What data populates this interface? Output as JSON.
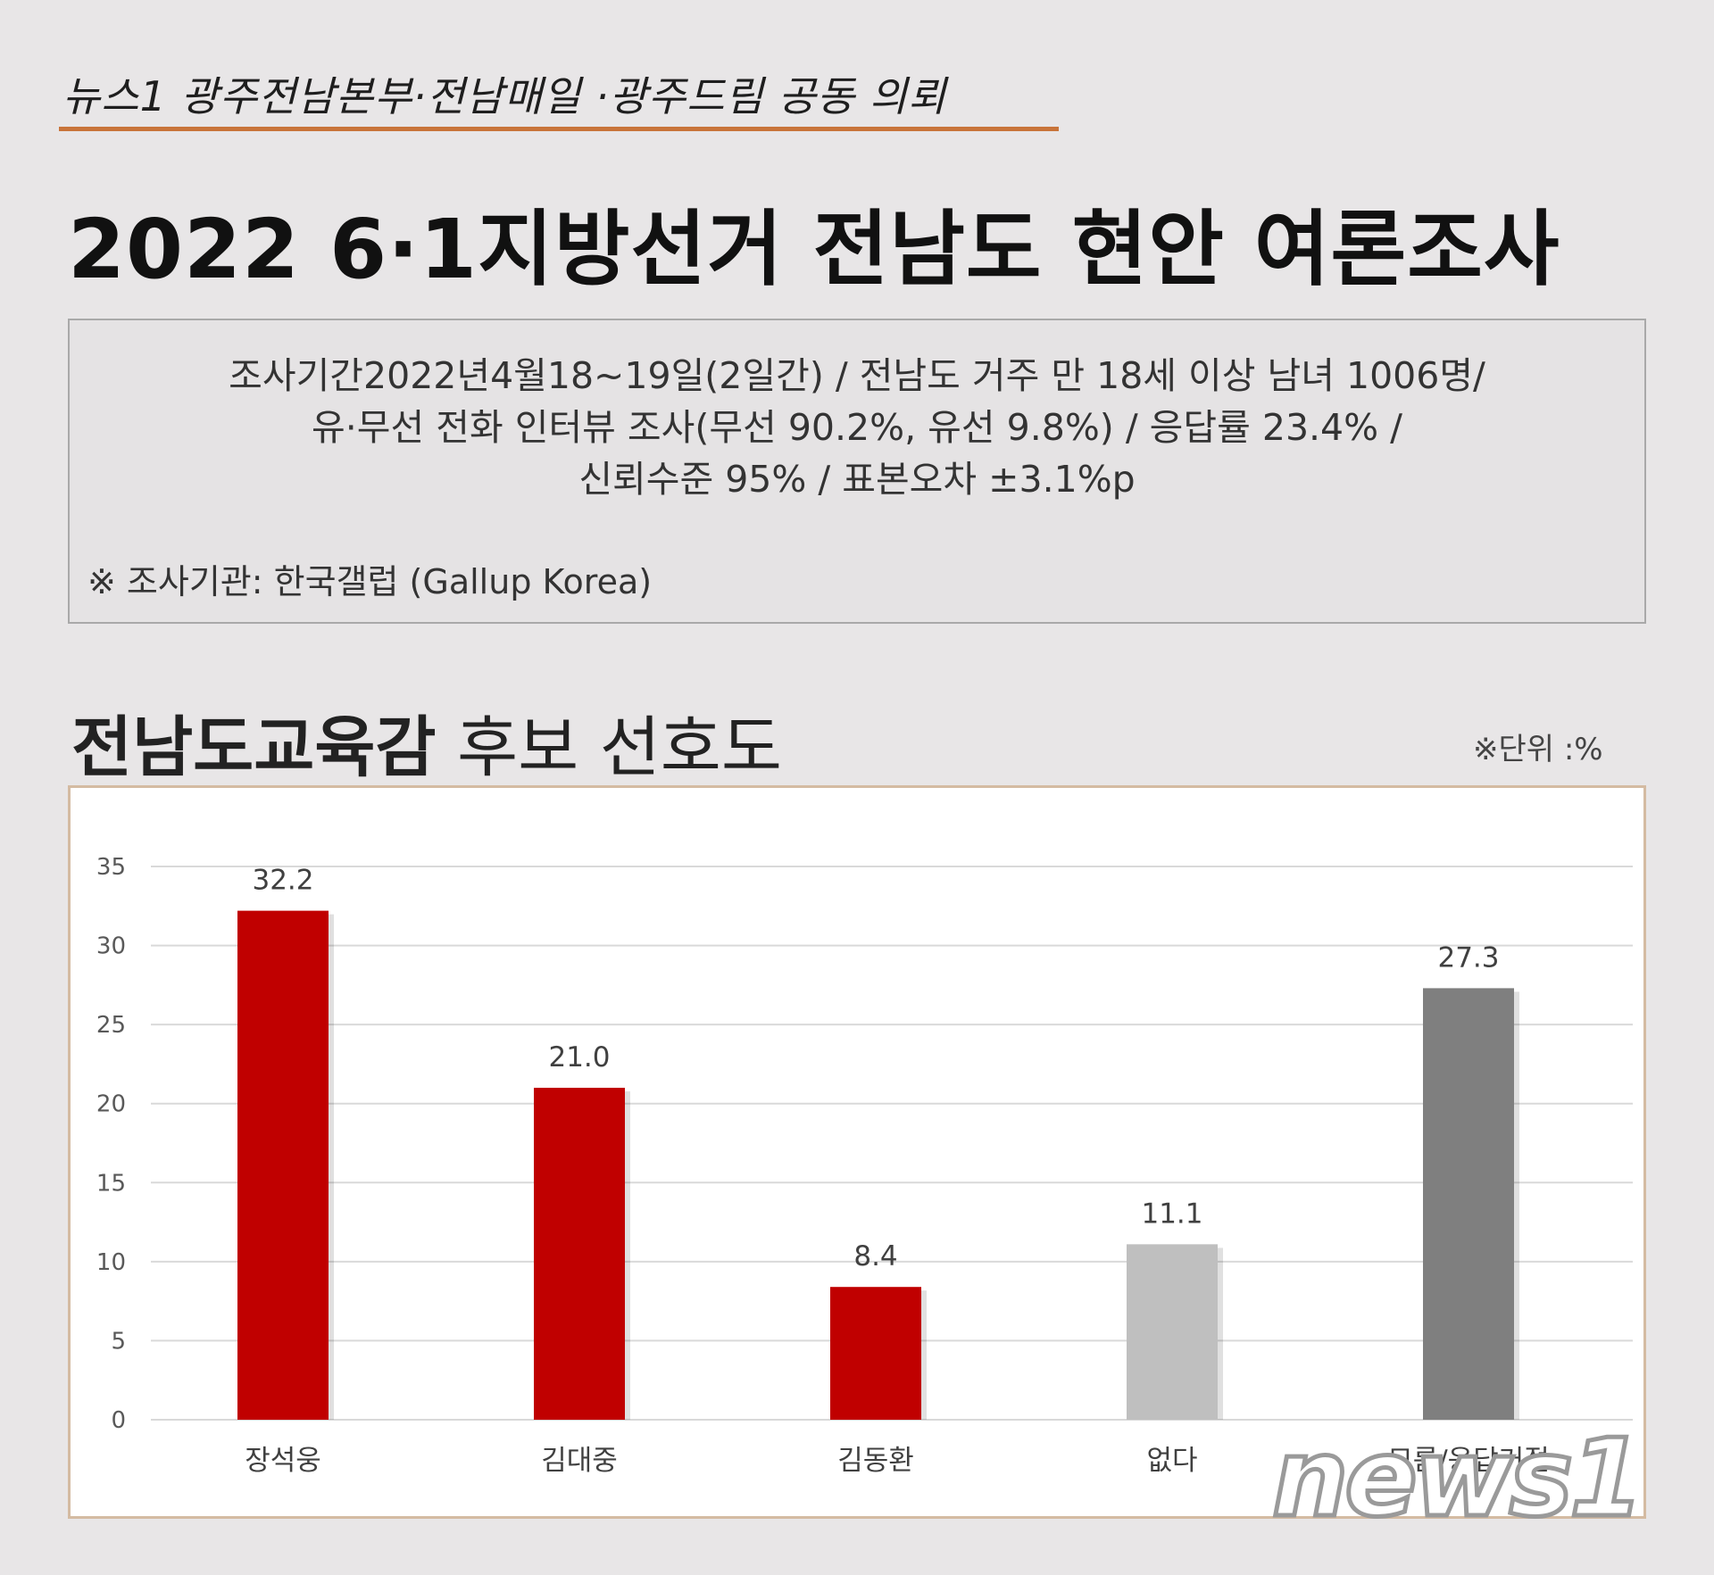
{
  "header": {
    "credit": "뉴스1 광주전남본부·전남매일 ·광주드림 공동 의뢰",
    "title": "2022 6·1지방선거 전남도 현안 여론조사"
  },
  "info": {
    "lines": [
      "조사기간2022년4월18~19일(2일간) / 전남도 거주 만 18세 이상 남녀 1006명/",
      "유·무선 전화 인터뷰 조사(무선 90.2%, 유선 9.8%) / 응답률 23.4% /",
      "신뢰수준 95%  / 표본오차 ±3.1%p"
    ],
    "note": "※ 조사기관: 한국갤럽 (Gallup Korea)"
  },
  "chart_header": {
    "title_bold": "전남도교육감",
    "title_rest": " 후보 선호도",
    "unit": "※단위 :%"
  },
  "watermark": "news1",
  "chart_data": {
    "type": "bar",
    "title": "전남도교육감 후보 선호도",
    "unit": "%",
    "categories": [
      "장석웅",
      "김대중",
      "김동환",
      "없다",
      "모름/응답거절"
    ],
    "values": [
      32.2,
      21.0,
      8.4,
      11.1,
      27.3
    ],
    "value_labels": [
      "32.2",
      "21.0",
      "8.4",
      "11.1",
      "27.3"
    ],
    "colors": [
      "#c00000",
      "#c00000",
      "#c00000",
      "#bfbfbf",
      "#7f7f7f"
    ],
    "ylim": [
      0,
      35
    ],
    "yticks": [
      0,
      5,
      10,
      15,
      20,
      25,
      30,
      35
    ],
    "grid": true,
    "legend": "none"
  }
}
